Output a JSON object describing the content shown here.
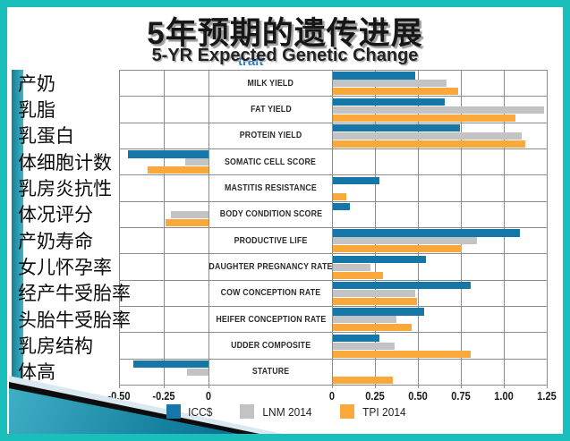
{
  "slide": {
    "title": "5年预期的遗传进展",
    "subtitle": "5-YR Expected Genetic Change",
    "ghost_label": "trait"
  },
  "chart_data": {
    "type": "bar",
    "orientation": "horizontal",
    "title": "5年预期的遗传进展",
    "subtitle": "5-YR Expected Genetic Change",
    "categories": [
      "MILK YIELD",
      "FAT YIELD",
      "PROTEIN YIELD",
      "SOMATIC CELL SCORE",
      "MASTITIS RESISTANCE",
      "BODY CONDITION SCORE",
      "PRODUCTIVE LIFE",
      "DAUGHTER PREGNANCY RATE",
      "COW CONCEPTION RATE",
      "HEIFER CONCEPTION RATE",
      "UDDER COMPOSITE",
      "STATURE"
    ],
    "categories_cn": [
      "产奶",
      "乳脂",
      "乳蛋白",
      "体细胞计数",
      "乳房炎抗性",
      "体况评分",
      "产奶寿命",
      "女儿怀孕率",
      "经产牛受胎率",
      "头胎牛受胎率",
      "乳房结构",
      "体高"
    ],
    "series": [
      {
        "name": "ICC$",
        "color": "#1577A7",
        "values": [
          0.48,
          0.65,
          0.74,
          -0.45,
          0.27,
          0.1,
          1.09,
          0.54,
          0.8,
          0.53,
          0.27,
          -0.42
        ]
      },
      {
        "name": "LNM 2014",
        "color": "#C3C3C5",
        "values": [
          0.66,
          1.23,
          1.1,
          -0.13,
          0.0,
          -0.21,
          0.84,
          0.22,
          0.48,
          0.37,
          0.36,
          -0.12
        ]
      },
      {
        "name": "TPI 2014",
        "color": "#F9A93C",
        "values": [
          0.73,
          1.06,
          1.12,
          -0.34,
          0.08,
          -0.24,
          0.75,
          0.29,
          0.49,
          0.46,
          0.8,
          0.35
        ]
      }
    ],
    "xlim": [
      -0.5,
      1.25
    ],
    "x_tick_labels": [
      "-0.50",
      "-0.25",
      "0",
      "0",
      "0.25",
      "0.50",
      "0.75",
      "1.00",
      "1.25"
    ],
    "grid": true,
    "legend_position": "bottom"
  },
  "colors": {
    "frame": "#1ABEBA",
    "accent_bar": "#1B93A8",
    "grid": "#8C8C8C",
    "swoosh_teal_dark": "#15809F",
    "swoosh_teal_light": "#3FAFC5",
    "swoosh_black": "#0D0D0D",
    "swoosh_pale": "#D9E8F1"
  }
}
